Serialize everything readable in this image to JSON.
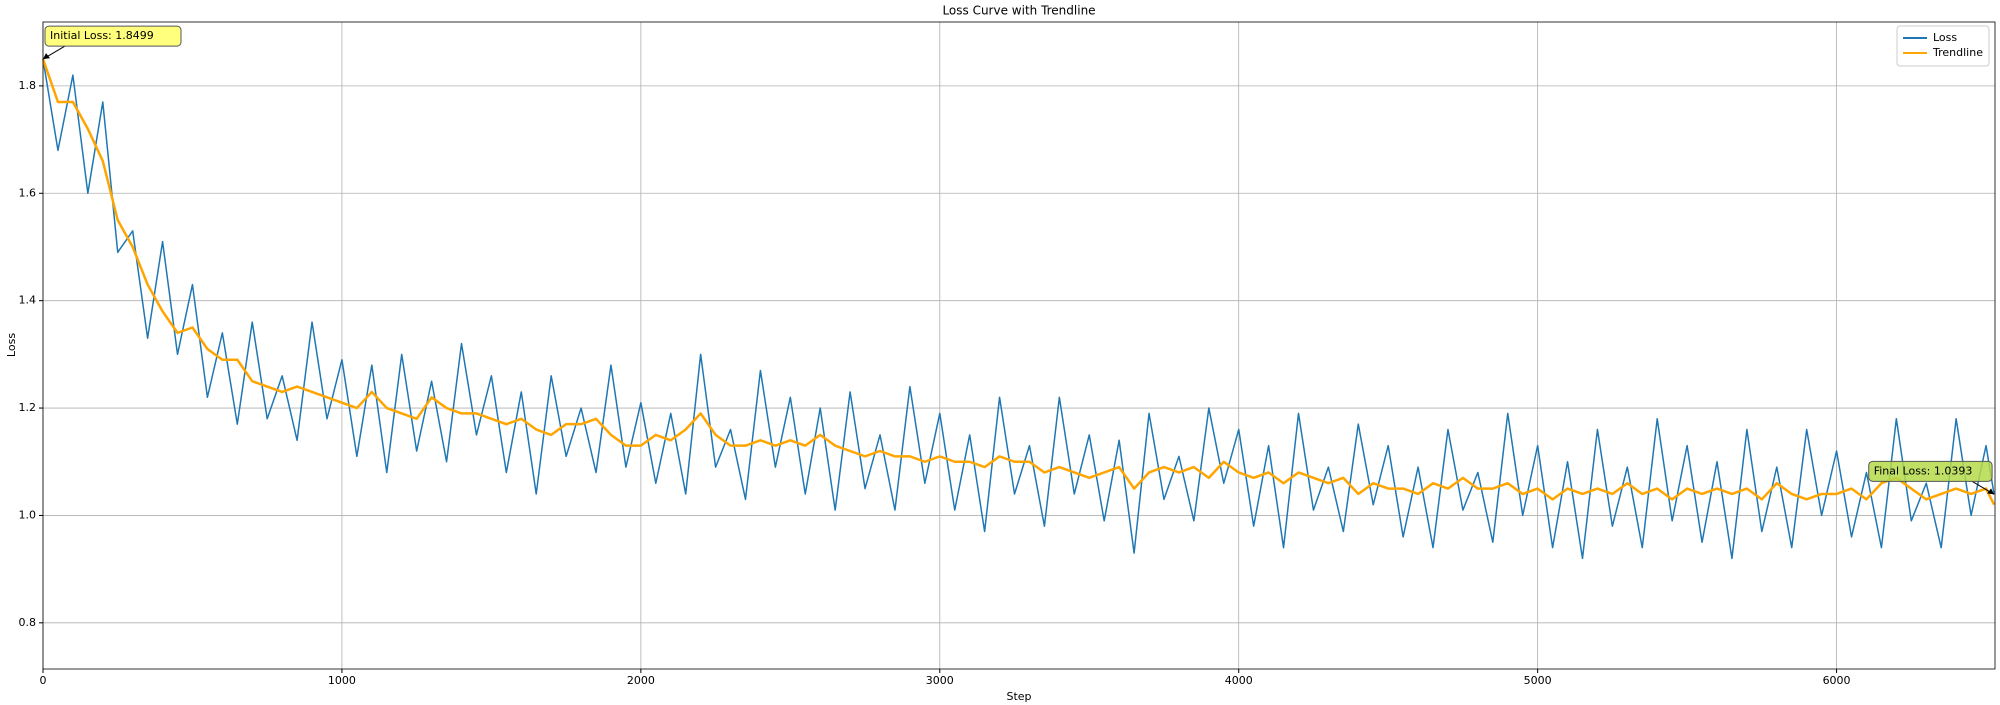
{
  "chart_data": {
    "type": "line",
    "title": "Loss Curve with Trendline",
    "xlabel": "Step",
    "ylabel": "Loss",
    "x": [
      0,
      50,
      100,
      150,
      200,
      250,
      300,
      350,
      400,
      450,
      500,
      550,
      600,
      650,
      700,
      750,
      800,
      850,
      900,
      950,
      1000,
      1050,
      1100,
      1150,
      1200,
      1250,
      1300,
      1350,
      1400,
      1450,
      1500,
      1550,
      1600,
      1650,
      1700,
      1750,
      1800,
      1850,
      1900,
      1950,
      2000,
      2050,
      2100,
      2150,
      2200,
      2250,
      2300,
      2350,
      2400,
      2450,
      2500,
      2550,
      2600,
      2650,
      2700,
      2750,
      2800,
      2850,
      2900,
      2950,
      3000,
      3050,
      3100,
      3150,
      3200,
      3250,
      3300,
      3350,
      3400,
      3450,
      3500,
      3550,
      3600,
      3650,
      3700,
      3750,
      3800,
      3850,
      3900,
      3950,
      4000,
      4050,
      4100,
      4150,
      4200,
      4250,
      4300,
      4350,
      4400,
      4450,
      4500,
      4550,
      4600,
      4650,
      4700,
      4750,
      4800,
      4850,
      4900,
      4950,
      5000,
      5050,
      5100,
      5150,
      5200,
      5250,
      5300,
      5350,
      5400,
      5450,
      5500,
      5550,
      5600,
      5650,
      5700,
      5750,
      5800,
      5850,
      5900,
      5950,
      6000,
      6050,
      6100,
      6150,
      6200,
      6250,
      6300,
      6350,
      6400,
      6450,
      6500,
      6527
    ],
    "series": [
      {
        "name": "Loss",
        "color": "#1f77b4",
        "width": 1.5,
        "values": [
          1.8499,
          1.68,
          1.82,
          1.6,
          1.77,
          1.49,
          1.53,
          1.33,
          1.51,
          1.3,
          1.43,
          1.22,
          1.34,
          1.17,
          1.36,
          1.18,
          1.26,
          1.14,
          1.36,
          1.18,
          1.29,
          1.11,
          1.28,
          1.08,
          1.3,
          1.12,
          1.25,
          1.1,
          1.32,
          1.15,
          1.26,
          1.08,
          1.23,
          1.04,
          1.26,
          1.11,
          1.2,
          1.08,
          1.28,
          1.09,
          1.21,
          1.06,
          1.19,
          1.04,
          1.3,
          1.09,
          1.16,
          1.03,
          1.27,
          1.09,
          1.22,
          1.04,
          1.2,
          1.01,
          1.23,
          1.05,
          1.15,
          1.01,
          1.24,
          1.06,
          1.19,
          1.01,
          1.15,
          0.97,
          1.22,
          1.04,
          1.13,
          0.98,
          1.22,
          1.04,
          1.15,
          0.99,
          1.14,
          0.93,
          1.19,
          1.03,
          1.11,
          0.99,
          1.2,
          1.06,
          1.16,
          0.98,
          1.13,
          0.94,
          1.19,
          1.01,
          1.09,
          0.97,
          1.17,
          1.02,
          1.13,
          0.96,
          1.09,
          0.94,
          1.16,
          1.01,
          1.08,
          0.95,
          1.19,
          1.0,
          1.13,
          0.94,
          1.1,
          0.92,
          1.16,
          0.98,
          1.09,
          0.94,
          1.18,
          0.99,
          1.13,
          0.95,
          1.1,
          0.92,
          1.16,
          0.97,
          1.09,
          0.94,
          1.16,
          1.0,
          1.12,
          0.96,
          1.08,
          0.94,
          1.18,
          0.99,
          1.06,
          0.94,
          1.18,
          1.0,
          1.13,
          1.0393
        ]
      },
      {
        "name": "Trendline",
        "color": "#ffa500",
        "width": 2.5,
        "values": [
          1.85,
          1.77,
          1.77,
          1.72,
          1.66,
          1.55,
          1.5,
          1.43,
          1.38,
          1.34,
          1.35,
          1.31,
          1.29,
          1.29,
          1.25,
          1.24,
          1.23,
          1.24,
          1.23,
          1.22,
          1.21,
          1.2,
          1.23,
          1.2,
          1.19,
          1.18,
          1.22,
          1.2,
          1.19,
          1.19,
          1.18,
          1.17,
          1.18,
          1.16,
          1.15,
          1.17,
          1.17,
          1.18,
          1.15,
          1.13,
          1.13,
          1.15,
          1.14,
          1.16,
          1.19,
          1.15,
          1.13,
          1.13,
          1.14,
          1.13,
          1.14,
          1.13,
          1.15,
          1.13,
          1.12,
          1.11,
          1.12,
          1.11,
          1.11,
          1.1,
          1.11,
          1.1,
          1.1,
          1.09,
          1.11,
          1.1,
          1.1,
          1.08,
          1.09,
          1.08,
          1.07,
          1.08,
          1.09,
          1.05,
          1.08,
          1.09,
          1.08,
          1.09,
          1.07,
          1.1,
          1.08,
          1.07,
          1.08,
          1.06,
          1.08,
          1.07,
          1.06,
          1.07,
          1.04,
          1.06,
          1.05,
          1.05,
          1.04,
          1.06,
          1.05,
          1.07,
          1.05,
          1.05,
          1.06,
          1.04,
          1.05,
          1.03,
          1.05,
          1.04,
          1.05,
          1.04,
          1.06,
          1.04,
          1.05,
          1.03,
          1.05,
          1.04,
          1.05,
          1.04,
          1.05,
          1.03,
          1.06,
          1.04,
          1.03,
          1.04,
          1.04,
          1.05,
          1.03,
          1.06,
          1.07,
          1.05,
          1.03,
          1.04,
          1.05,
          1.04,
          1.05,
          1.02
        ]
      }
    ],
    "xlim": [
      0,
      6530
    ],
    "ylim": [
      0.714,
      1.919
    ],
    "xticks": [
      0,
      1000,
      2000,
      3000,
      4000,
      5000,
      6000
    ],
    "yticks": [
      0.8,
      {
        "value": 1,
        "label": "1.0"
      },
      1.2,
      1.4,
      1.6,
      1.8
    ],
    "grid": true,
    "legend": "upper right",
    "annotations": [
      {
        "text": "Initial Loss: 1.8499",
        "color": "#ffff66",
        "anchor": "first"
      },
      {
        "text": "Final Loss: 1.0393",
        "color": "#b5d94a",
        "anchor": "last"
      }
    ]
  }
}
